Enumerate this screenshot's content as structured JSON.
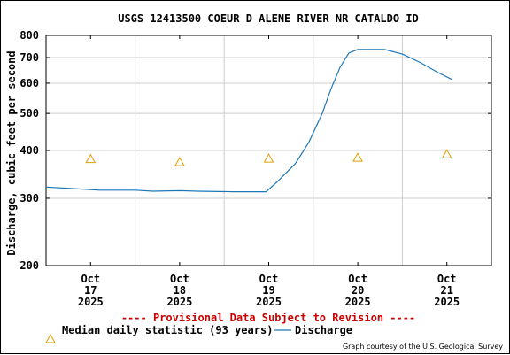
{
  "chart_data": {
    "type": "line",
    "title": "USGS 12413500 COEUR D ALENE RIVER NR CATALDO ID",
    "ylabel": "Discharge, cubic feet per second",
    "xlabel": "",
    "y_scale": "log",
    "ylim": [
      200,
      800
    ],
    "y_ticks": [
      200,
      300,
      400,
      500,
      600,
      700,
      800
    ],
    "y_tick_labels": [
      "200",
      "300",
      "400",
      "500",
      "600",
      "700",
      "800"
    ],
    "x_tick_labels": [
      {
        "month": "Oct",
        "day": "17",
        "year": "2025",
        "x": 1.0
      },
      {
        "month": "Oct",
        "day": "18",
        "year": "2025",
        "x": 2.0
      },
      {
        "month": "Oct",
        "day": "19",
        "year": "2025",
        "x": 3.0
      },
      {
        "month": "Oct",
        "day": "20",
        "year": "2025",
        "x": 4.0
      },
      {
        "month": "Oct",
        "day": "21",
        "year": "2025",
        "x": 5.0
      }
    ],
    "xlim": [
      0.5,
      5.5
    ],
    "grid": true,
    "series": [
      {
        "name": "Discharge",
        "color": "#1f77b4",
        "x": [
          0.5,
          0.8,
          1.1,
          1.5,
          1.7,
          2.0,
          2.2,
          2.6,
          2.97,
          3.1,
          3.3,
          3.45,
          3.6,
          3.7,
          3.8,
          3.9,
          4.0,
          4.15,
          4.3,
          4.5,
          4.7,
          4.9,
          5.06
        ],
        "y": [
          321,
          318,
          315,
          315,
          313,
          314,
          313,
          312,
          312,
          332,
          370,
          420,
          500,
          580,
          660,
          720,
          735,
          735,
          735,
          715,
          680,
          640,
          613
        ]
      },
      {
        "name": "Median daily statistic (93 years)",
        "marker": "triangle",
        "color": "#e0a000",
        "x": [
          1.0,
          2.0,
          3.0,
          4.0,
          5.0
        ],
        "y": [
          380,
          373,
          381,
          383,
          391
        ]
      }
    ],
    "provisional_note": "---- Provisional Data Subject to Revision ----",
    "legend_position": "bottom",
    "credit": "Graph courtesy of the U.S. Geological Survey"
  }
}
